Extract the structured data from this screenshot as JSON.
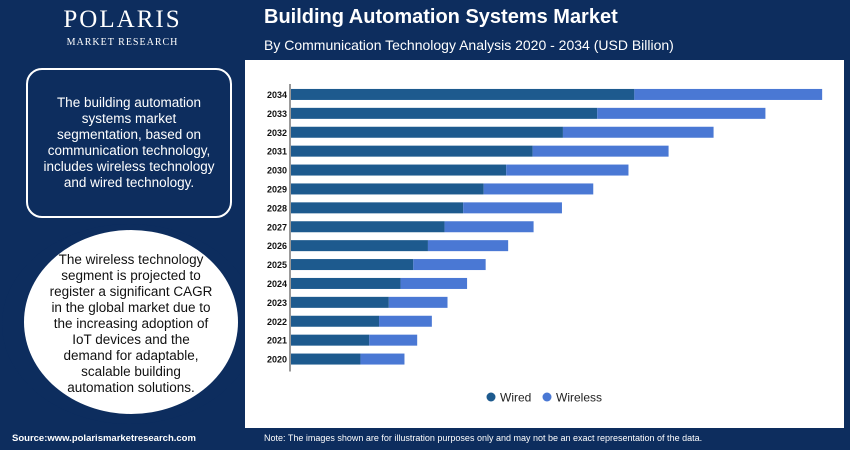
{
  "logo": {
    "brand": "POLARIS",
    "subtitle": "MARKET RESEARCH"
  },
  "header": {
    "title": "Building Automation Systems Market",
    "subtitle": "By Communication Technology Analysis 2020 - 2034 (USD Billion)"
  },
  "info": {
    "box_text": "The building automation systems market segmentation, based on communication technology, includes wireless technology and wired technology.",
    "circle_text": "The wireless technology segment is projected to register a significant CAGR in the global market due to the increasing adoption of IoT devices and the demand for adaptable, scalable building automation solutions."
  },
  "footer": {
    "source": "Source:www.polarismarketresearch.com",
    "note": "Note: The images shown are for illustration purposes only and may not be an exact representation of the data."
  },
  "colors": {
    "wired": "#1d5a8e",
    "wireless": "#4a78d4",
    "navy": "#0d2d5e"
  },
  "chart_data": {
    "type": "bar",
    "orientation": "horizontal",
    "stacked": true,
    "categories": [
      "2034",
      "2033",
      "2032",
      "2031",
      "2030",
      "2029",
      "2028",
      "2027",
      "2026",
      "2025",
      "2024",
      "2023",
      "2022",
      "2021",
      "2020"
    ],
    "series": [
      {
        "name": "Wired",
        "values": [
          35.1,
          31.3,
          27.8,
          24.7,
          22.0,
          19.7,
          17.6,
          15.7,
          14.0,
          12.5,
          11.2,
          10.0,
          9.0,
          8.0,
          7.1
        ]
      },
      {
        "name": "Wireless",
        "values": [
          19.2,
          17.2,
          15.4,
          13.9,
          12.5,
          11.2,
          10.1,
          9.1,
          8.2,
          7.4,
          6.8,
          6.0,
          5.4,
          4.9,
          4.5
        ]
      }
    ],
    "xlim": [
      0,
      55
    ],
    "legend": "bottom",
    "grid": false
  }
}
